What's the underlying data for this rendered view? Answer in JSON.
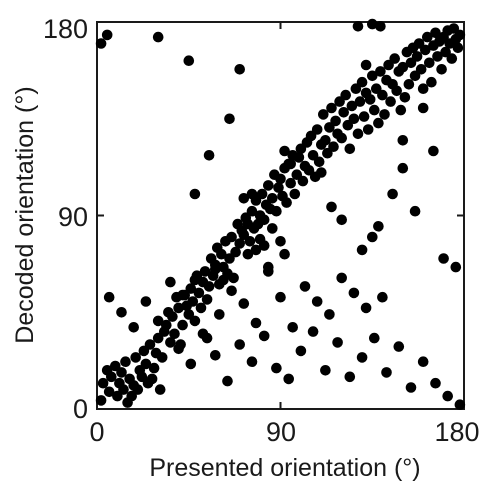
{
  "chart_data": {
    "type": "scatter",
    "title": "",
    "xlabel": "Presented orientation (°)",
    "ylabel": "Decoded orientation (°)",
    "xlim": [
      0,
      180
    ],
    "ylim": [
      0,
      180
    ],
    "xticks": [
      0,
      90,
      180
    ],
    "yticks": [
      0,
      90,
      180
    ],
    "xtick_labels": [
      "0",
      "90",
      "180"
    ],
    "ytick_labels": [
      "0",
      "90",
      "180"
    ],
    "grid": false,
    "marker_color": "#000000",
    "points": [
      [
        2,
        4
      ],
      [
        3,
        12
      ],
      [
        5,
        18
      ],
      [
        6,
        8
      ],
      [
        7,
        15
      ],
      [
        9,
        20
      ],
      [
        10,
        6
      ],
      [
        11,
        12
      ],
      [
        12,
        17
      ],
      [
        13,
        9
      ],
      [
        14,
        22
      ],
      [
        15,
        3
      ],
      [
        16,
        14
      ],
      [
        17,
        6
      ],
      [
        18,
        11
      ],
      [
        19,
        24
      ],
      [
        20,
        9
      ],
      [
        21,
        18
      ],
      [
        22,
        15
      ],
      [
        23,
        27
      ],
      [
        24,
        21
      ],
      [
        25,
        12
      ],
      [
        26,
        30
      ],
      [
        27,
        14
      ],
      [
        28,
        19
      ],
      [
        29,
        26
      ],
      [
        30,
        33
      ],
      [
        31,
        9
      ],
      [
        32,
        24
      ],
      [
        33,
        36
      ],
      [
        34,
        39
      ],
      [
        35,
        45
      ],
      [
        36,
        31
      ],
      [
        37,
        43
      ],
      [
        38,
        35
      ],
      [
        39,
        52
      ],
      [
        40,
        47
      ],
      [
        41,
        30
      ],
      [
        42,
        39
      ],
      [
        43,
        53
      ],
      [
        44,
        48
      ],
      [
        45,
        44
      ],
      [
        46,
        56
      ],
      [
        47,
        50
      ],
      [
        48,
        41
      ],
      [
        49,
        62
      ],
      [
        50,
        54
      ],
      [
        51,
        47
      ],
      [
        52,
        59
      ],
      [
        53,
        64
      ],
      [
        54,
        51
      ],
      [
        55,
        57
      ],
      [
        56,
        70
      ],
      [
        57,
        62
      ],
      [
        58,
        67
      ],
      [
        59,
        75
      ],
      [
        60,
        58
      ],
      [
        61,
        72
      ],
      [
        62,
        66
      ],
      [
        63,
        78
      ],
      [
        64,
        63
      ],
      [
        65,
        70
      ],
      [
        66,
        80
      ],
      [
        67,
        61
      ],
      [
        68,
        73
      ],
      [
        69,
        86
      ],
      [
        70,
        77
      ],
      [
        71,
        83
      ],
      [
        72,
        81
      ],
      [
        73,
        89
      ],
      [
        74,
        86
      ],
      [
        75,
        78
      ],
      [
        76,
        92
      ],
      [
        77,
        84
      ],
      [
        78,
        97
      ],
      [
        79,
        86
      ],
      [
        80,
        79
      ],
      [
        81,
        100
      ],
      [
        82,
        88
      ],
      [
        83,
        95
      ],
      [
        84,
        104
      ],
      [
        85,
        93
      ],
      [
        86,
        98
      ],
      [
        87,
        109
      ],
      [
        88,
        92
      ],
      [
        89,
        103
      ],
      [
        90,
        107
      ],
      [
        91,
        99
      ],
      [
        92,
        112
      ],
      [
        93,
        96
      ],
      [
        94,
        114
      ],
      [
        95,
        105
      ],
      [
        96,
        118
      ],
      [
        97,
        100
      ],
      [
        98,
        109
      ],
      [
        99,
        117
      ],
      [
        100,
        121
      ],
      [
        101,
        106
      ],
      [
        102,
        113
      ],
      [
        103,
        124
      ],
      [
        104,
        111
      ],
      [
        105,
        127
      ],
      [
        106,
        118
      ],
      [
        107,
        108
      ],
      [
        108,
        130
      ],
      [
        109,
        115
      ],
      [
        110,
        123
      ],
      [
        111,
        137
      ],
      [
        112,
        125
      ],
      [
        113,
        119
      ],
      [
        114,
        131
      ],
      [
        115,
        140
      ],
      [
        116,
        122
      ],
      [
        117,
        134
      ],
      [
        118,
        128
      ],
      [
        119,
        143
      ],
      [
        120,
        126
      ],
      [
        121,
        138
      ],
      [
        122,
        146
      ],
      [
        123,
        132
      ],
      [
        124,
        121
      ],
      [
        125,
        141
      ],
      [
        126,
        135
      ],
      [
        127,
        149
      ],
      [
        128,
        128
      ],
      [
        129,
        143
      ],
      [
        130,
        152
      ],
      [
        131,
        136
      ],
      [
        132,
        147
      ],
      [
        133,
        130
      ],
      [
        134,
        144
      ],
      [
        135,
        155
      ],
      [
        136,
        139
      ],
      [
        137,
        149
      ],
      [
        138,
        133
      ],
      [
        139,
        157
      ],
      [
        140,
        146
      ],
      [
        141,
        137
      ],
      [
        142,
        153
      ],
      [
        143,
        160
      ],
      [
        144,
        143
      ],
      [
        145,
        151
      ],
      [
        146,
        163
      ],
      [
        147,
        148
      ],
      [
        148,
        157
      ],
      [
        149,
        139
      ],
      [
        150,
        159
      ],
      [
        151,
        145
      ],
      [
        152,
        166
      ],
      [
        153,
        151
      ],
      [
        154,
        161
      ],
      [
        155,
        168
      ],
      [
        156,
        155
      ],
      [
        157,
        164
      ],
      [
        158,
        170
      ],
      [
        159,
        158
      ],
      [
        160,
        149
      ],
      [
        161,
        167
      ],
      [
        162,
        173
      ],
      [
        163,
        161
      ],
      [
        164,
        152
      ],
      [
        165,
        169
      ],
      [
        166,
        175
      ],
      [
        167,
        164
      ],
      [
        168,
        171
      ],
      [
        169,
        158
      ],
      [
        170,
        173
      ],
      [
        171,
        166
      ],
      [
        172,
        176
      ],
      [
        173,
        170
      ],
      [
        174,
        163
      ],
      [
        175,
        177
      ],
      [
        176,
        172
      ],
      [
        177,
        168
      ],
      [
        178,
        174
      ],
      [
        6,
        52
      ],
      [
        12,
        45
      ],
      [
        18,
        38
      ],
      [
        24,
        50
      ],
      [
        30,
        41
      ],
      [
        36,
        59
      ],
      [
        42,
        53
      ],
      [
        48,
        60
      ],
      [
        54,
        33
      ],
      [
        60,
        44
      ],
      [
        66,
        55
      ],
      [
        72,
        49
      ],
      [
        78,
        40
      ],
      [
        84,
        64
      ],
      [
        90,
        52
      ],
      [
        96,
        38
      ],
      [
        102,
        57
      ],
      [
        108,
        50
      ],
      [
        114,
        44
      ],
      [
        120,
        61
      ],
      [
        126,
        54
      ],
      [
        132,
        47
      ],
      [
        40,
        28
      ],
      [
        46,
        21
      ],
      [
        52,
        35
      ],
      [
        58,
        25
      ],
      [
        64,
        13
      ],
      [
        70,
        30
      ],
      [
        76,
        22
      ],
      [
        82,
        34
      ],
      [
        88,
        19
      ],
      [
        94,
        14
      ],
      [
        100,
        27
      ],
      [
        106,
        36
      ],
      [
        112,
        18
      ],
      [
        118,
        31
      ],
      [
        124,
        15
      ],
      [
        130,
        24
      ],
      [
        136,
        33
      ],
      [
        142,
        17
      ],
      [
        148,
        29
      ],
      [
        154,
        10
      ],
      [
        160,
        22
      ],
      [
        166,
        12
      ],
      [
        172,
        6
      ],
      [
        178,
        2
      ],
      [
        2,
        170
      ],
      [
        5,
        174
      ],
      [
        30,
        173
      ],
      [
        45,
        162
      ],
      [
        70,
        158
      ],
      [
        65,
        135
      ],
      [
        55,
        118
      ],
      [
        48,
        100
      ],
      [
        58,
        65
      ],
      [
        62,
        60
      ],
      [
        84,
        66
      ],
      [
        92,
        72
      ],
      [
        110,
        110
      ],
      [
        115,
        94
      ],
      [
        120,
        88
      ],
      [
        130,
        74
      ],
      [
        135,
        80
      ],
      [
        140,
        52
      ],
      [
        150,
        112
      ],
      [
        156,
        92
      ],
      [
        165,
        120
      ],
      [
        170,
        70
      ],
      [
        176,
        66
      ],
      [
        160,
        140
      ],
      [
        150,
        125
      ],
      [
        145,
        100
      ],
      [
        138,
        85
      ],
      [
        132,
        160
      ],
      [
        128,
        178
      ],
      [
        135,
        179
      ],
      [
        139,
        178
      ],
      [
        92,
        120
      ],
      [
        95,
        114
      ],
      [
        80,
        90
      ],
      [
        76,
        100
      ],
      [
        72,
        98
      ],
      [
        86,
        84
      ],
      [
        90,
        78
      ],
      [
        82,
        76
      ],
      [
        78,
        74
      ],
      [
        74,
        72
      ]
    ]
  }
}
